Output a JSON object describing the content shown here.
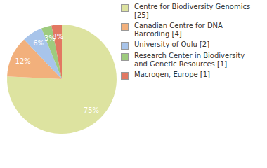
{
  "chart_data": {
    "type": "pie",
    "categories": [
      "Centre for Biodiversity Genomics [25]",
      "Canadian Centre for DNA Barcoding [4]",
      "University of Oulu [2]",
      "Research Center in Biodiversity and Genetic Resources [1]",
      "Macrogen, Europe [1]"
    ],
    "values": [
      75,
      12,
      6,
      3,
      3
    ],
    "value_labels": [
      "75%",
      "12%",
      "6%",
      "3%",
      "3%"
    ],
    "colors": [
      "#dde3a0",
      "#f2b07c",
      "#a8c4ea",
      "#9ecb7e",
      "#e27862"
    ],
    "data_labels": true,
    "legend": "right"
  }
}
